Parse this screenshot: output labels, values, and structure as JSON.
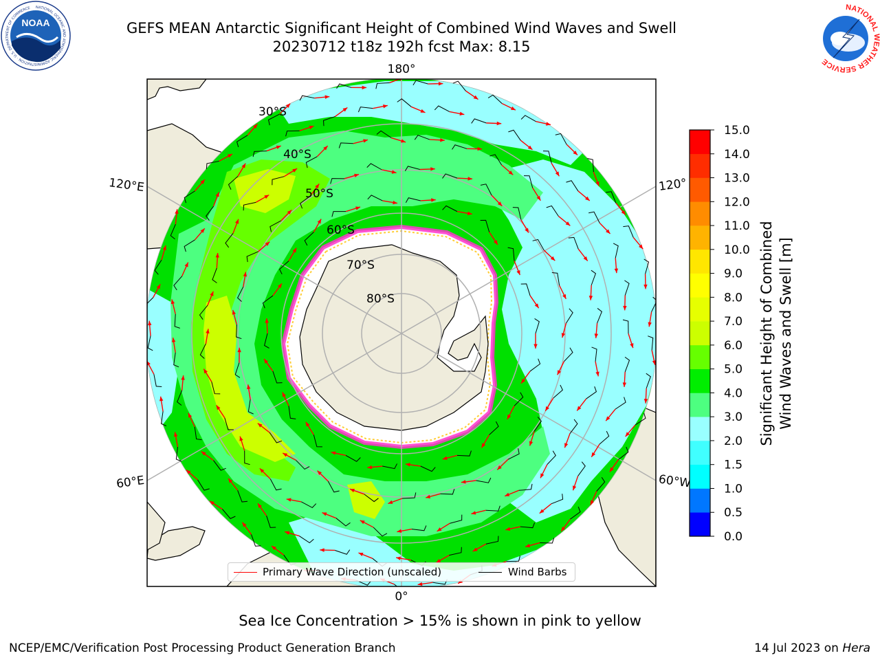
{
  "title": {
    "line1": "GEFS MEAN Antarctic Significant Height of Combined Wind Waves and Swell",
    "line2": "20230712 t18z 192h fcst   Max: 8.15"
  },
  "map": {
    "projection": "south-polar-stereographic",
    "lon_labels": [
      "180°",
      "120°E",
      "120°",
      "60°E",
      "60°W",
      "0°"
    ],
    "lat_labels": [
      "30°S",
      "40°S",
      "50°S",
      "60°S",
      "70°S",
      "80°S"
    ],
    "land_color": "#efecdc",
    "ocean_colors": [
      "#00ffff",
      "#80ffff",
      "#4dff80",
      "#00e000",
      "#66ff00",
      "#ccff00",
      "#ffff00"
    ],
    "ice_colors": [
      "#ff33cc",
      "#ff99ff",
      "#ffcc33"
    ]
  },
  "legend": {
    "primary_wave": "Primary Wave Direction (unscaled)",
    "wind_barbs": "Wind Barbs",
    "primary_color": "#ff0000",
    "wind_color": "#000000"
  },
  "colorbar": {
    "label_line1": "Significant Height of Combined",
    "label_line2": "Wind Waves and Swell [m]",
    "ticks": [
      "0.0",
      "0.5",
      "1.0",
      "1.5",
      "2.0",
      "3.0",
      "4.0",
      "5.0",
      "6.0",
      "7.0",
      "8.0",
      "9.0",
      "10.0",
      "11.0",
      "12.0",
      "13.0",
      "14.0",
      "15.0"
    ],
    "colors": [
      "#0000ff",
      "#0077ff",
      "#00ffff",
      "#40ffff",
      "#99ffff",
      "#4dff80",
      "#00ee00",
      "#66ff00",
      "#ccff00",
      "#e6ff00",
      "#ffff00",
      "#ffe600",
      "#ffb300",
      "#ff8c00",
      "#ff5a00",
      "#ff2d00",
      "#ff0000"
    ]
  },
  "note": "Sea Ice Concentration > 15% is shown in pink to yellow",
  "footer": {
    "left": "NCEP/EMC/Verification Post Processing Product Generation Branch",
    "right_prefix": "14 Jul 2023 on ",
    "right_host": "Hera"
  },
  "logos": {
    "noaa": "NOAA",
    "noaa_ring": "NATIONAL OCEANIC AND ATMOSPHERIC ADMINISTRATION · U.S. DEPARTMENT OF COMMERCE",
    "nws_ring": "NATIONAL WEATHER SERVICE"
  }
}
